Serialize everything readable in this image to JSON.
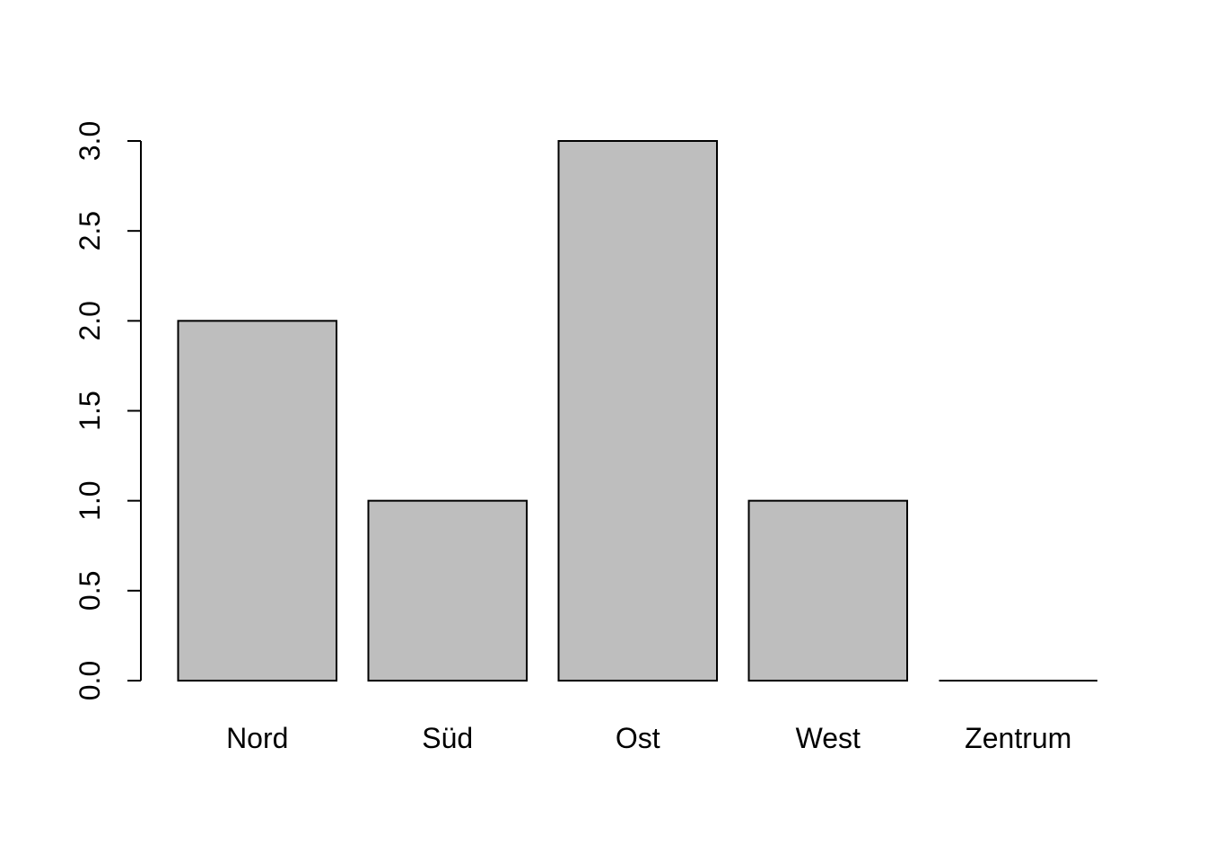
{
  "chart_data": {
    "type": "bar",
    "categories": [
      "Nord",
      "Süd",
      "Ost",
      "West",
      "Zentrum"
    ],
    "values": [
      2,
      1,
      3,
      1,
      0
    ],
    "yticks": [
      "0.0",
      "0.5",
      "1.0",
      "1.5",
      "2.0",
      "2.5",
      "3.0"
    ],
    "ylim": [
      0,
      3
    ],
    "bar_fill": "#bebebe",
    "bar_stroke": "#000000",
    "grid": false
  }
}
